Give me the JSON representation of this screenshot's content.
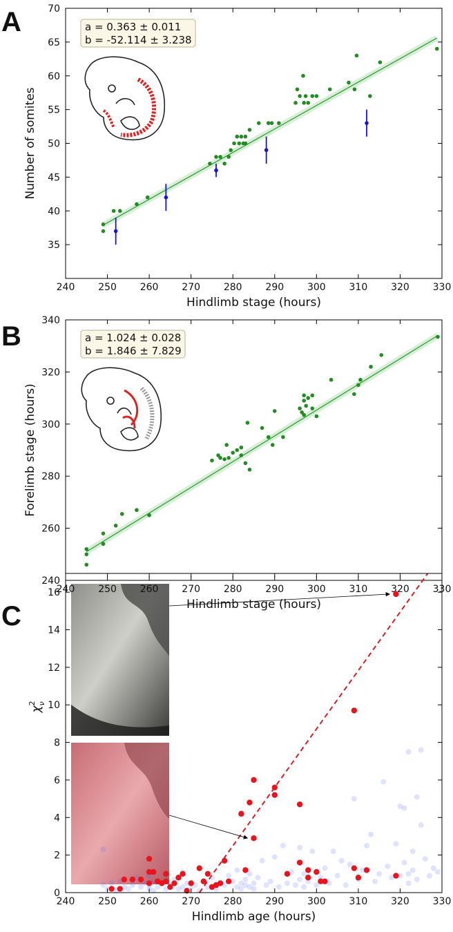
{
  "chart_data": [
    {
      "type": "scatter",
      "panel": "A",
      "xlabel": "Hindlimb stage (hours)",
      "ylabel": "Number of somites",
      "annotations": [
        "a = 0.363 ± 0.011",
        "b = -52.114 ± 3.238"
      ],
      "xlim": [
        240,
        330
      ],
      "xticks": [
        240,
        250,
        260,
        270,
        280,
        290,
        300,
        310,
        320,
        330
      ],
      "ylim": [
        30,
        70
      ],
      "yticks": [
        35,
        40,
        45,
        50,
        55,
        60,
        65,
        70
      ],
      "series": [
        {
          "color": "#228b22",
          "x": [
            249,
            249,
            251.5,
            253,
            257,
            259.6,
            274.5,
            276,
            277,
            278,
            279,
            279.5,
            280.3,
            281,
            281.5,
            282,
            282.5,
            283,
            283,
            284,
            286.2,
            288.5,
            289.3,
            291,
            295,
            295.4,
            296,
            296.8,
            297,
            297.4,
            298,
            299,
            300,
            303.2,
            307.7,
            309.1,
            309.6,
            312.8,
            315.2,
            328.8
          ],
          "values": [
            37,
            38,
            40,
            40,
            41,
            42,
            47,
            48,
            48,
            47,
            48,
            49,
            50,
            51,
            50,
            51,
            50,
            50,
            51,
            52,
            53,
            53,
            53,
            53,
            56,
            58,
            57,
            60,
            56,
            57,
            56,
            57,
            57,
            58,
            59,
            58,
            63,
            57,
            62,
            64
          ]
        },
        {
          "color": "#1515d0",
          "x": [
            252,
            264,
            276,
            288,
            312
          ],
          "values": [
            37,
            42,
            46,
            49,
            53
          ],
          "errors": [
            2,
            2,
            1,
            2,
            2
          ]
        }
      ],
      "fit": {
        "color": "#2e9e2e",
        "x": [
          249,
          328.8
        ],
        "values": [
          37.9,
          65.6
        ]
      }
    },
    {
      "type": "scatter",
      "panel": "B",
      "xlabel": "Hindlimb stage (hours)",
      "ylabel": "Forelimb stage (hours)",
      "annotations": [
        "a = 1.024 ± 0.028",
        "b = 1.846 ± 7.829"
      ],
      "xlim": [
        240,
        330
      ],
      "xticks": [
        240,
        250,
        260,
        270,
        280,
        290,
        300,
        310,
        320,
        330
      ],
      "ylim": [
        240,
        340
      ],
      "yticks": [
        240,
        260,
        280,
        300,
        320,
        340
      ],
      "series": [
        {
          "color": "#228b22",
          "x": [
            245,
            245,
            245,
            249,
            249,
            252,
            253.5,
            257,
            260,
            275,
            276.5,
            277,
            278,
            278.5,
            279,
            280,
            281,
            282,
            282,
            283,
            283.5,
            284,
            287,
            288.5,
            289.5,
            290,
            292,
            296,
            296.5,
            297,
            297,
            297,
            297.5,
            298,
            299,
            299,
            300,
            303.5,
            309,
            310,
            310.5,
            313,
            315.5,
            329
          ],
          "values": [
            246,
            250,
            252,
            254,
            258,
            261,
            265.5,
            267,
            265,
            286,
            288,
            287,
            286.5,
            292,
            287,
            289,
            290,
            291,
            288,
            285,
            300.5,
            282.5,
            298.5,
            295,
            292,
            305,
            295,
            306,
            304.5,
            303.5,
            309,
            311,
            307,
            310,
            306,
            311,
            303,
            317,
            311.5,
            315,
            317,
            322,
            326.5,
            333.5
          ]
        }
      ],
      "fit": {
        "color": "#2e9e2e",
        "x": [
          245,
          329
        ],
        "values": [
          251,
          334
        ]
      }
    },
    {
      "type": "scatter",
      "panel": "C",
      "xlabel": "Hindlimb age (hours)",
      "ylabel": {
        "symbol": "χ",
        "sup": "2",
        "sub": "ν"
      },
      "xlim": [
        240,
        330
      ],
      "xticks": [
        240,
        250,
        260,
        270,
        280,
        290,
        300,
        310,
        320,
        330
      ],
      "ylim": [
        0,
        17
      ],
      "yticks": [
        0,
        2,
        4,
        6,
        8,
        10,
        12,
        14,
        16
      ],
      "series": [
        {
          "color": "#5064ff",
          "opacity": 0.18,
          "x": [
            249,
            249,
            250,
            251,
            252,
            253,
            254,
            255,
            256,
            257,
            258,
            259,
            260,
            260,
            260,
            261,
            261,
            262,
            263,
            264,
            265,
            266,
            267,
            268,
            268,
            269,
            270,
            271,
            272,
            273,
            274,
            275,
            276,
            277,
            278,
            279,
            280,
            281,
            281,
            282,
            282,
            283,
            283,
            284,
            284,
            285,
            285,
            286,
            287,
            288,
            289,
            290,
            291,
            292,
            293,
            294,
            295,
            296,
            296,
            297,
            297,
            298,
            299,
            300,
            301,
            302,
            303,
            304,
            305,
            306,
            307,
            308,
            309,
            310,
            311,
            312,
            313,
            314,
            315,
            316,
            317,
            318,
            319,
            320,
            320,
            321,
            321,
            322,
            322,
            323,
            323,
            324,
            324,
            325,
            326,
            327,
            328,
            329,
            325,
            322
          ],
          "values": [
            2.3,
            0.4,
            0.2,
            0.5,
            0.1,
            0.6,
            0.3,
            0.2,
            0.4,
            0.8,
            0.3,
            0.5,
            0.2,
            0.9,
            0.4,
            0.1,
            0.6,
            0.3,
            0.5,
            0.2,
            0.4,
            0.7,
            0.2,
            0.3,
            1.1,
            0.5,
            0.2,
            0.4,
            0.1,
            0.6,
            0.3,
            0.8,
            0.2,
            0.5,
            0.4,
            0.9,
            0.6,
            0.3,
            1.2,
            0.5,
            0.2,
            0.7,
            0.4,
            0.3,
            1.0,
            0.5,
            0.2,
            0.8,
            1.7,
            0.4,
            0.6,
            1.9,
            0.3,
            2.5,
            0.5,
            1.1,
            0.4,
            2.4,
            0.7,
            0.3,
            1.0,
            0.6,
            2.2,
            0.4,
            0.8,
            1.3,
            0.5,
            2.2,
            0.9,
            1.7,
            0.4,
            1.5,
            5.0,
            0.7,
            1.2,
            2.5,
            3.1,
            0.6,
            1.0,
            5.9,
            1.4,
            0.8,
            2.6,
            4.6,
            0.9,
            4.5,
            1.6,
            7.5,
            0.5,
            2.2,
            1.2,
            5.1,
            0.7,
            7.6,
            1.8,
            0.9,
            1.3,
            1.1,
            3.6,
            1.0
          ]
        },
        {
          "color": "#e8141e",
          "opacity": 1,
          "x": [
            251,
            253,
            254,
            256,
            258,
            260,
            260,
            260,
            261,
            262,
            263,
            264,
            264,
            265,
            266,
            267,
            268,
            269,
            270,
            272,
            273,
            274,
            275,
            276,
            277,
            278,
            279,
            282,
            283,
            284,
            285,
            285,
            290,
            290,
            293,
            296,
            296,
            298,
            298,
            300,
            301,
            302,
            309,
            309,
            310,
            312,
            319,
            319
          ],
          "values": [
            0.2,
            0.2,
            0.7,
            0.7,
            0.7,
            1.8,
            1.1,
            0.5,
            1.1,
            0.6,
            0.5,
            0.6,
            1.0,
            0.3,
            0.5,
            0.8,
            1.0,
            0.1,
            0.5,
            1.3,
            0.6,
            1.0,
            0.3,
            0.4,
            0.5,
            1.7,
            0.6,
            4.2,
            1.2,
            4.8,
            6.0,
            2.9,
            5.6,
            5.2,
            1.0,
            4.7,
            1.6,
            1.2,
            0.8,
            1.1,
            0.6,
            0.6,
            9.7,
            1.3,
            0.8,
            1.2,
            15.9,
            0.9
          ]
        }
      ],
      "trend": {
        "color": "#d42020",
        "x": [
          272,
          326.6
        ],
        "values": [
          0,
          17
        ]
      }
    }
  ]
}
